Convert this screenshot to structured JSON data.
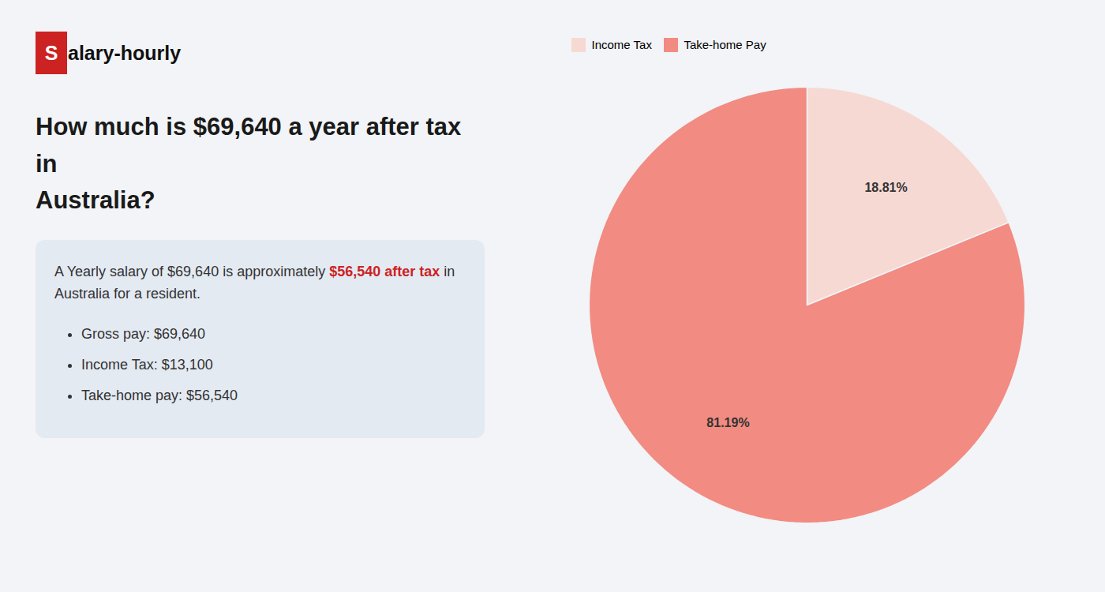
{
  "chart_data": {
    "type": "pie",
    "logo": {
      "initial": "S",
      "rest": "alary-hourly",
      "color": "#cc2222"
    },
    "title": "How much is $69,640 a year after tax in\nAustralia?",
    "summary": [
      [
        {
          "text": "A Yearly salary of $69,640 is approximately "
        },
        {
          "text": "$56,540 after tax",
          "color": "#cc2222"
        },
        {
          "text": " in"
        }
      ],
      [
        {
          "text": "Australia for a resident."
        }
      ]
    ],
    "bullets": [
      "Gross pay: $69,640",
      "Income Tax: $13,100",
      "Take-home pay: $56,540"
    ],
    "categories": [
      "Income Tax",
      "Take-home Pay"
    ],
    "values": [
      18.81,
      81.19
    ],
    "value_labels": [
      "18.81%",
      "81.19%"
    ],
    "colors": [
      "#f7d9d3",
      "#f28b82"
    ],
    "data_labels": true,
    "legend": "top"
  }
}
